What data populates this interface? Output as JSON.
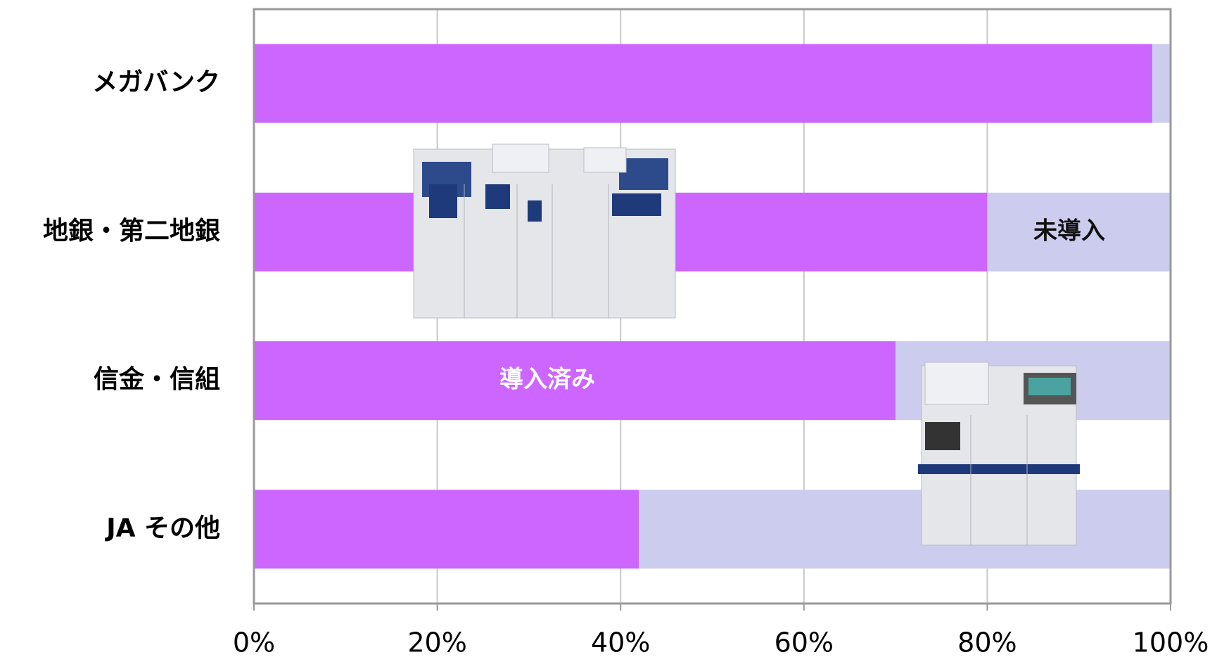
{
  "chart_data": {
    "type": "bar",
    "orientation": "horizontal",
    "stacked": true,
    "categories": [
      "メガバンク",
      "地銀・第二地銀",
      "信金・信組",
      "JA その他"
    ],
    "series": [
      {
        "name": "導入済み",
        "color": "#cc66ff",
        "values": [
          98,
          80,
          70,
          42
        ]
      },
      {
        "name": "未導入",
        "color": "#ccccee",
        "values": [
          2,
          20,
          30,
          58
        ]
      }
    ],
    "xlim": [
      0,
      100
    ],
    "xticks": [
      {
        "value": 0,
        "label": "0%"
      },
      {
        "value": 20,
        "label": "20%"
      },
      {
        "value": 40,
        "label": "40%"
      },
      {
        "value": 60,
        "label": "60%"
      },
      {
        "value": 80,
        "label": "80%"
      },
      {
        "value": 100,
        "label": "100%"
      }
    ],
    "grid": true
  }
}
